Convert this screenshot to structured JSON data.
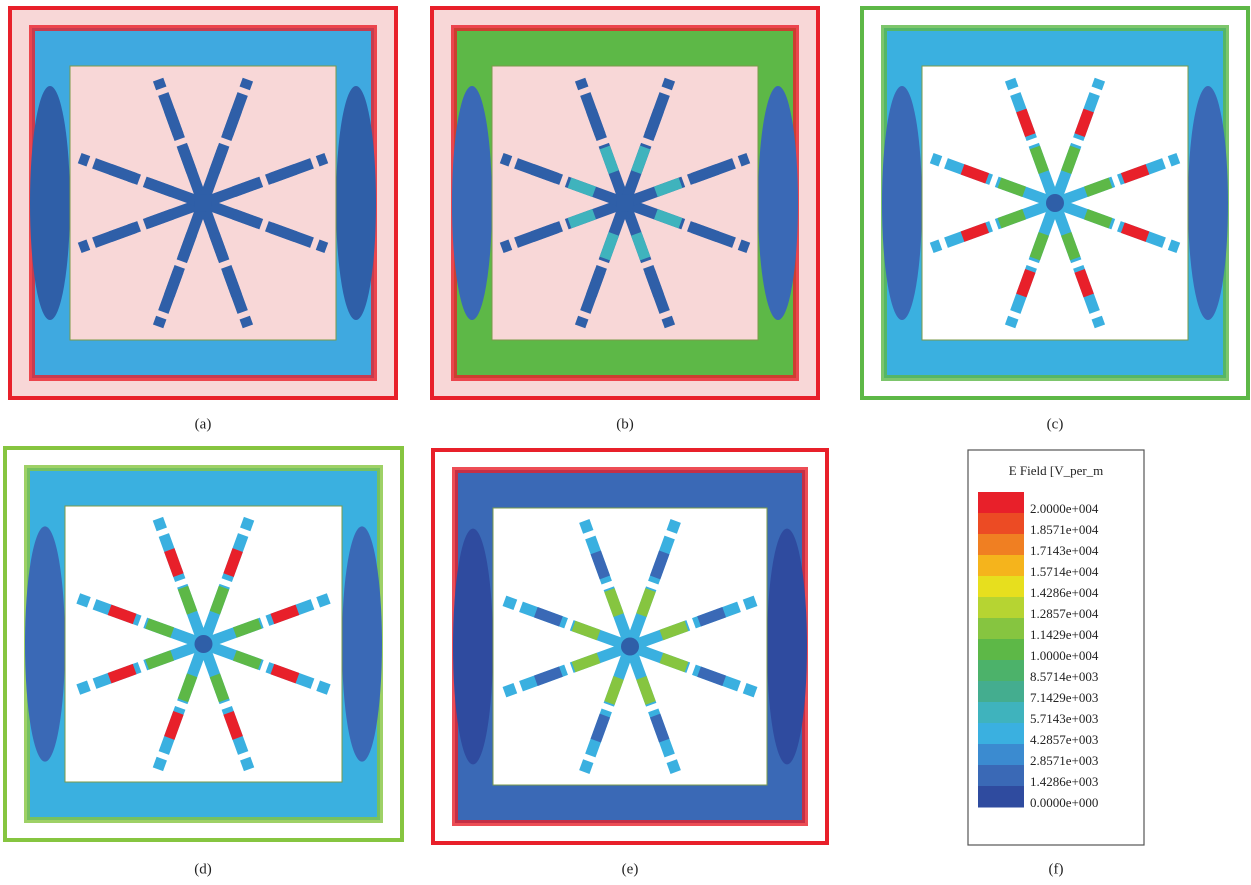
{
  "panels": [
    {
      "label": "(a)"
    },
    {
      "label": "(b)"
    },
    {
      "label": "(c)"
    },
    {
      "label": "(d)"
    },
    {
      "label": "(e)"
    },
    {
      "label": "(f)"
    }
  ],
  "legend": {
    "title": "E Field [V_per_m",
    "labels": [
      "2.0000e+004",
      "1.8571e+004",
      "1.7143e+004",
      "1.5714e+004",
      "1.4286e+004",
      "1.2857e+004",
      "1.1429e+004",
      "1.0000e+004",
      "8.5714e+003",
      "7.1429e+003",
      "5.7143e+003",
      "4.2857e+003",
      "2.8571e+003",
      "1.4286e+003",
      "0.0000e+000"
    ],
    "colors": [
      "#e8202a",
      "#ec4b24",
      "#f07f22",
      "#f5b41c",
      "#e7df1e",
      "#b6d432",
      "#86c540",
      "#5db847",
      "#4cb26a",
      "#44ad8f",
      "#3fb3bd",
      "#3ab0e0",
      "#3b8bd0",
      "#3a69b6",
      "#2f4b9f"
    ]
  }
}
